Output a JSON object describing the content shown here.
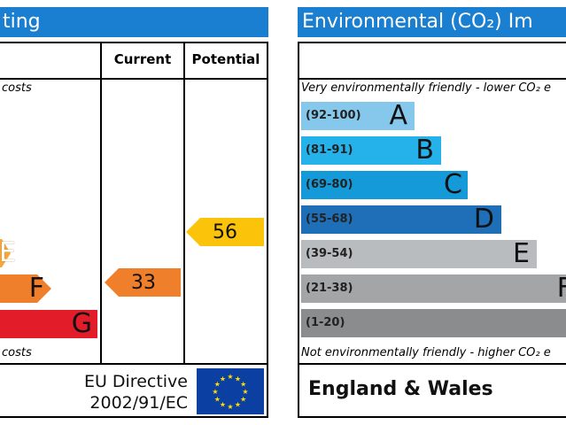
{
  "energy_panel": {
    "title_fragment": "ting",
    "columns": {
      "current": "Current",
      "potential": "Potential"
    },
    "top_note_fragment": "costs",
    "bottom_note_fragment": "costs",
    "bands": [
      {
        "letter": "E",
        "color": "#f7a63a"
      },
      {
        "letter": "F",
        "color": "#ef7f2a"
      },
      {
        "letter": "G",
        "color": "#e21c28"
      }
    ],
    "current_rating": {
      "value": "33",
      "color": "#ef7f2a"
    },
    "potential_rating": {
      "value": "56",
      "color": "#fcc30b"
    },
    "directive_line1": "EU Directive",
    "directive_line2": "2002/91/EC"
  },
  "environment_panel": {
    "title": "Environmental (CO₂) Im",
    "top_note": "Very environmentally friendly - lower CO₂ e",
    "bottom_note": "Not environmentally friendly - higher CO₂ e",
    "bands": [
      {
        "range": "(92-100)",
        "letter": "A",
        "color": "#86c7ec"
      },
      {
        "range": "(81-91)",
        "letter": "B",
        "color": "#25b1e9"
      },
      {
        "range": "(69-80)",
        "letter": "C",
        "color": "#149ad9"
      },
      {
        "range": "(55-68)",
        "letter": "D",
        "color": "#1e6fb7"
      },
      {
        "range": "(39-54)",
        "letter": "E",
        "color": "#b9bcbe"
      },
      {
        "range": "(21-38)",
        "letter": "F",
        "color": "#a3a5a7"
      },
      {
        "range": "(1-20)",
        "letter": "",
        "color": "#8a8c8e"
      }
    ],
    "region": "England & Wales"
  }
}
